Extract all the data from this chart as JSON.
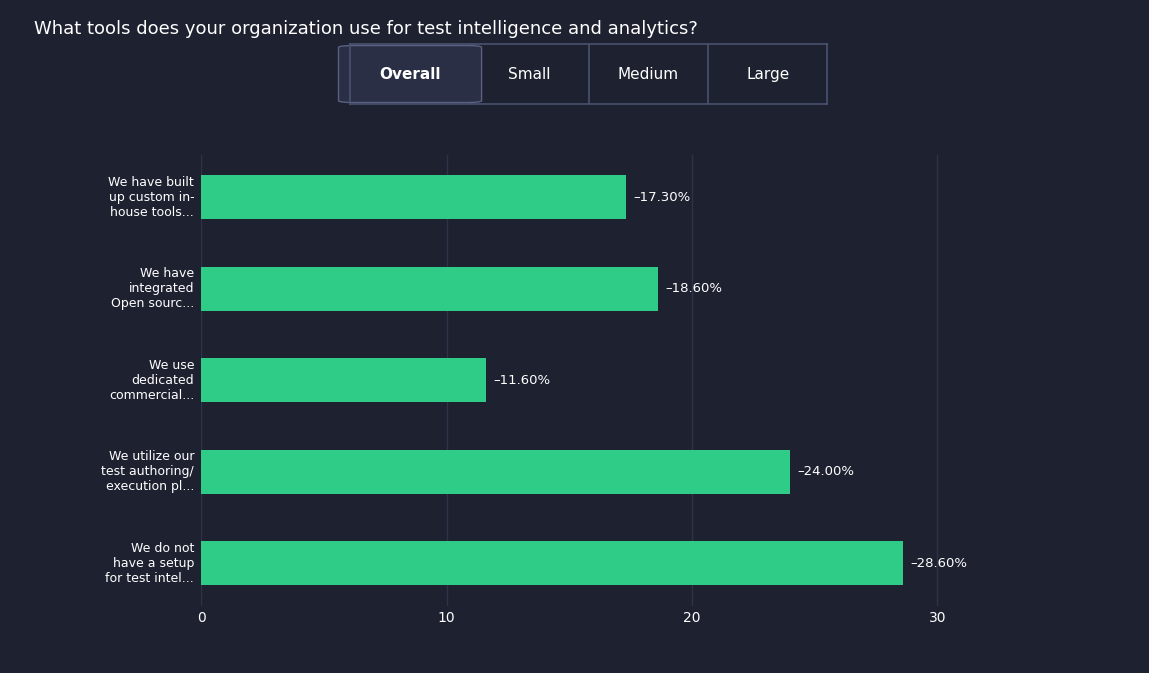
{
  "title": "What tools does your organization use for test intelligence and analytics?",
  "categories": [
    "We have built\nup custom in-\nhouse tools...",
    "We have\nintegrated\nOpen sourc...",
    "We use\ndedicated\ncommercial...",
    "We utilize our\ntest authoring/\nexecution pl...",
    "We do not\nhave a setup\nfor test intel..."
  ],
  "values": [
    17.3,
    18.6,
    11.6,
    24.0,
    28.6
  ],
  "labels": [
    "17.30%",
    "18.60%",
    "11.60%",
    "24.00%",
    "28.60%"
  ],
  "bar_color": "#2ecc87",
  "background_color": "#1e2130",
  "text_color": "#ffffff",
  "grid_color": "#2d3349",
  "xlim": [
    0,
    33
  ],
  "xticks": [
    0,
    10,
    20,
    30
  ],
  "legend_items": [
    "Overall",
    "Small",
    "Medium",
    "Large"
  ],
  "legend_selected": "Overall",
  "title_fontsize": 13,
  "label_fontsize": 9,
  "value_fontsize": 9.5,
  "tick_fontsize": 10,
  "legend_fontsize": 11
}
